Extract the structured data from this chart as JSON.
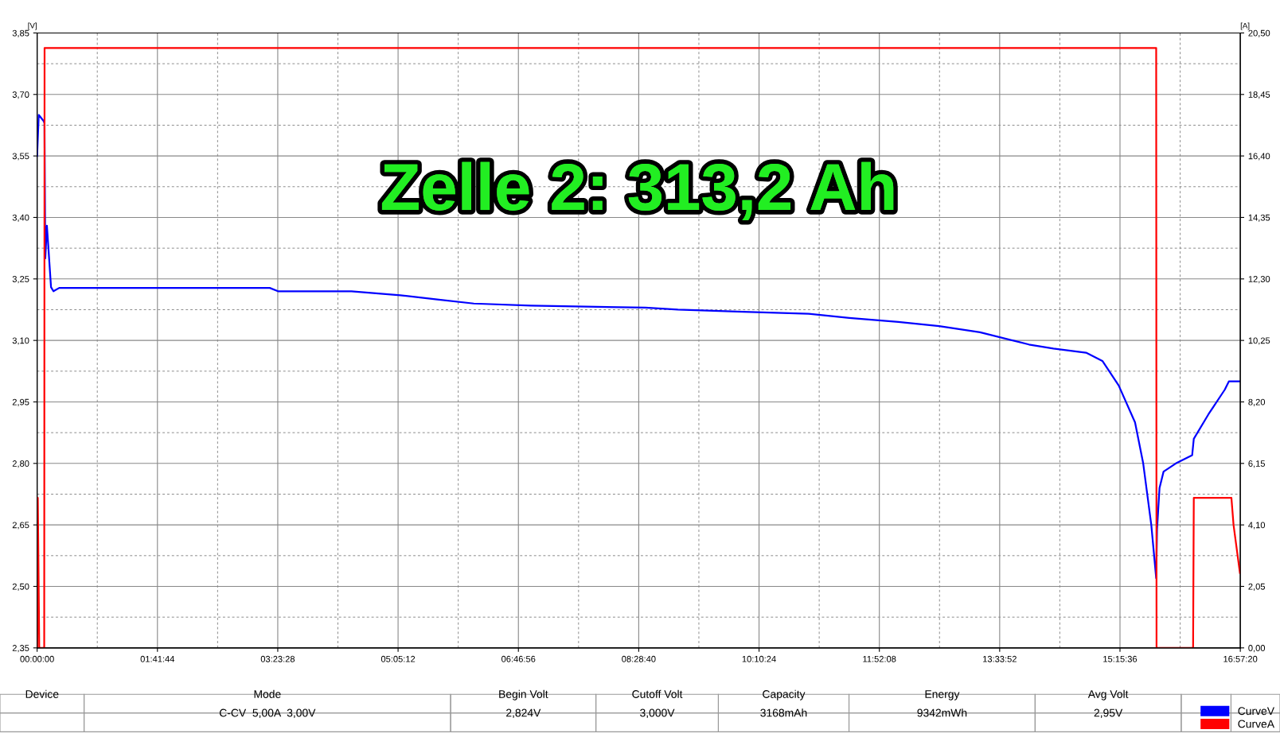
{
  "chart_data": {
    "type": "line",
    "ylabel": "[V]",
    "y2label": "[A]",
    "xlim": [
      0,
      16.9556
    ],
    "xticks": [
      {
        "value": 0,
        "label": "00:00:00"
      },
      {
        "value": 1.69556,
        "label": "01:41:44"
      },
      {
        "value": 3.39111,
        "label": "03:23:28"
      },
      {
        "value": 5.08667,
        "label": "05:05:12"
      },
      {
        "value": 6.78222,
        "label": "06:46:56"
      },
      {
        "value": 8.47778,
        "label": "08:28:40"
      },
      {
        "value": 10.17333,
        "label": "10:10:24"
      },
      {
        "value": 11.86889,
        "label": "11:52:08"
      },
      {
        "value": 13.56444,
        "label": "13:33:52"
      },
      {
        "value": 15.26,
        "label": "15:15:36"
      },
      {
        "value": 16.9556,
        "label": "16:57:20"
      }
    ],
    "ylim": [
      2.35,
      3.85
    ],
    "yticks": [
      {
        "value": 2.35,
        "label": "2,35"
      },
      {
        "value": 2.5,
        "label": "2,50"
      },
      {
        "value": 2.65,
        "label": "2,65"
      },
      {
        "value": 2.8,
        "label": "2,80"
      },
      {
        "value": 2.95,
        "label": "2,95"
      },
      {
        "value": 3.1,
        "label": "3,10"
      },
      {
        "value": 3.25,
        "label": "3,25"
      },
      {
        "value": 3.4,
        "label": "3,40"
      },
      {
        "value": 3.55,
        "label": "3,55"
      },
      {
        "value": 3.7,
        "label": "3,70"
      },
      {
        "value": 3.85,
        "label": "3,85"
      }
    ],
    "y2lim": [
      0,
      20.5
    ],
    "y2ticks": [
      {
        "value": 0,
        "label": "0,00"
      },
      {
        "value": 2.05,
        "label": "2,05"
      },
      {
        "value": 4.1,
        "label": "4,10"
      },
      {
        "value": 6.15,
        "label": "6,15"
      },
      {
        "value": 8.2,
        "label": "8,20"
      },
      {
        "value": 10.25,
        "label": "10,25"
      },
      {
        "value": 12.3,
        "label": "12,30"
      },
      {
        "value": 14.35,
        "label": "14,35"
      },
      {
        "value": 16.4,
        "label": "16,40"
      },
      {
        "value": 18.45,
        "label": "18,45"
      },
      {
        "value": 20.5,
        "label": "20,50"
      }
    ],
    "grid": true,
    "legend": "bottom right",
    "series": [
      {
        "name": "CurveV",
        "color": "#0000ff",
        "x": [
          0,
          0.023,
          0.092,
          0.104,
          0.115,
          0.138,
          0.196,
          0.23,
          0.311,
          3.279,
          3.394,
          4.429,
          5.119,
          5.637,
          6.154,
          6.96,
          8.57,
          9.03,
          9.951,
          10.871,
          11.446,
          12.136,
          12.711,
          13.287,
          13.747,
          13.977,
          14.322,
          14.782,
          15.012,
          15.242,
          15.472,
          15.587,
          15.701,
          15.77,
          15.782,
          15.817,
          15.874,
          16.047,
          16.277,
          16.3,
          16.507,
          16.737,
          16.794,
          16.95
        ],
        "values": [
          3.55,
          3.65,
          3.635,
          3.63,
          3.3,
          3.38,
          3.23,
          3.22,
          3.228,
          3.228,
          3.22,
          3.22,
          3.21,
          3.2,
          3.19,
          3.185,
          3.18,
          3.175,
          3.17,
          3.165,
          3.155,
          3.145,
          3.135,
          3.12,
          3.1,
          3.09,
          3.08,
          3.07,
          3.05,
          2.99,
          2.9,
          2.8,
          2.65,
          2.52,
          2.64,
          2.74,
          2.78,
          2.8,
          2.82,
          2.86,
          2.92,
          2.98,
          3.0,
          3.0
        ]
      },
      {
        "name": "CurveA",
        "color": "#ff0000",
        "axis": "y2",
        "x": [
          0,
          0.01,
          0.03,
          0.1,
          0.105,
          15.77,
          15.775,
          16.29,
          16.3,
          16.83,
          16.86,
          16.95
        ],
        "values": [
          0,
          5.0,
          0,
          0,
          20.0,
          20.0,
          0,
          0,
          5.0,
          5.0,
          4.1,
          2.5
        ]
      }
    ],
    "annotations": [
      "Zelle 2: 313,2 Ah",
      "Device",
      "Mode",
      "Begin Volt",
      "Cutoff Volt",
      "Capacity",
      "Energy",
      "Avg Volt",
      "C-CV  5,00A  3,00V",
      "2,824V",
      "3,000V",
      "3168mAh",
      "9342mWh",
      "2,95V"
    ]
  }
}
